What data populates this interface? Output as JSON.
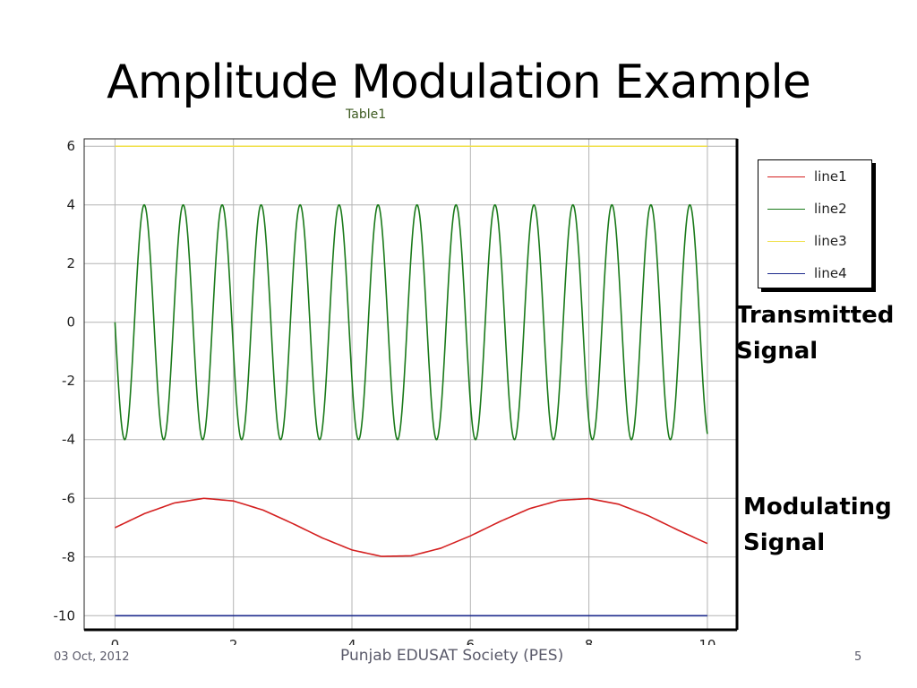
{
  "slide": {
    "title": "Amplitude Modulation Example",
    "footer_date": "03 Oct, 2012",
    "footer_org": "Punjab EDUSAT Society (PES)",
    "slide_number": "5"
  },
  "annotations": {
    "transmitted_line1": "Transmitted",
    "transmitted_line2": "Signal",
    "modulating_line1": "Modulating",
    "modulating_line2": "Signal"
  },
  "chart_data": {
    "type": "line",
    "title": "Table1",
    "xlabel": "",
    "ylabel": "",
    "xlim": [
      0,
      10
    ],
    "ylim": [
      -10,
      6
    ],
    "xticks": [
      0,
      2,
      4,
      6,
      8,
      10
    ],
    "yticks": [
      6,
      4,
      2,
      0,
      -2,
      -4,
      -6,
      -8,
      -10
    ],
    "grid": true,
    "legend_position": "right",
    "series": [
      {
        "name": "line1",
        "color": "#d42020",
        "x": [
          0,
          0.5,
          1.0,
          1.5,
          2.0,
          2.5,
          3.0,
          3.5,
          4.0,
          4.5,
          5.0,
          5.5,
          6.0,
          6.5,
          7.0,
          7.5,
          8.0,
          8.5,
          9.0,
          9.5,
          10.0
        ],
        "y": [
          -7.0,
          -6.52,
          -6.16,
          -6.0,
          -6.09,
          -6.4,
          -6.86,
          -7.35,
          -7.76,
          -7.98,
          -7.96,
          -7.7,
          -7.28,
          -6.79,
          -6.35,
          -6.07,
          -6.01,
          -6.2,
          -6.59,
          -7.08,
          -7.54
        ]
      },
      {
        "name": "line2",
        "color": "#1a7a1a",
        "amplitude": 4,
        "cycles": 15.2,
        "x_range": [
          0,
          10
        ],
        "y_range": [
          -4,
          4
        ]
      },
      {
        "name": "line3",
        "color": "#f0e04a",
        "x": [
          0,
          10
        ],
        "y": [
          6,
          6
        ]
      },
      {
        "name": "line4",
        "color": "#1c2a8c",
        "x": [
          0,
          10
        ],
        "y": [
          -10,
          -10
        ]
      }
    ]
  }
}
